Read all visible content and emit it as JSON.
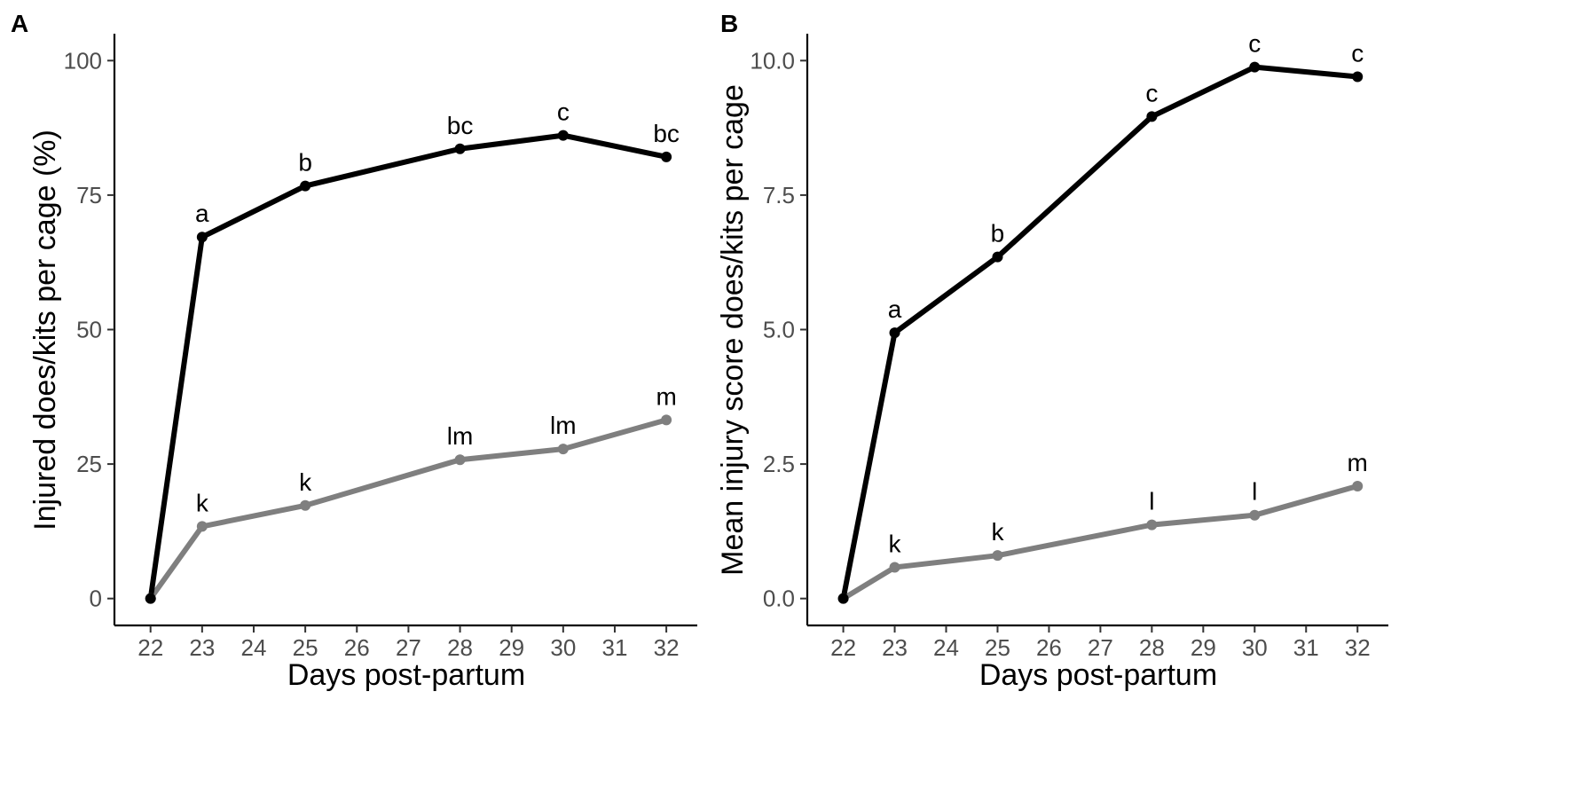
{
  "chart_data": [
    {
      "type": "line",
      "panel_label": "A",
      "xlabel": "Days post-partum",
      "ylabel": "Injured does/kits per cage (%)",
      "xlim": [
        21.3,
        32.6
      ],
      "ylim": [
        -5,
        105
      ],
      "x_ticks": [
        22,
        23,
        24,
        25,
        26,
        27,
        28,
        29,
        30,
        31,
        32
      ],
      "y_ticks": [
        0,
        25,
        50,
        75,
        100
      ],
      "y_tick_labels": [
        "0",
        "25",
        "50",
        "75",
        "100"
      ],
      "series": [
        {
          "name": "black",
          "color": "#000000",
          "x": [
            22,
            23,
            25,
            28,
            30,
            32
          ],
          "values": [
            0,
            67.2,
            76.7,
            83.6,
            86.1,
            82.1
          ],
          "letters": [
            "",
            "a",
            "b",
            "bc",
            "c",
            "bc"
          ]
        },
        {
          "name": "grey",
          "color": "#7f7f7f",
          "x": [
            22,
            23,
            25,
            28,
            30,
            32
          ],
          "values": [
            0,
            13.4,
            17.3,
            25.8,
            27.8,
            33.2
          ],
          "letters": [
            "",
            "k",
            "k",
            "lm",
            "lm",
            "m"
          ]
        }
      ]
    },
    {
      "type": "line",
      "panel_label": "B",
      "xlabel": "Days post-partum",
      "ylabel": "Mean injury score does/kits per cage",
      "xlim": [
        21.3,
        32.6
      ],
      "ylim": [
        -0.5,
        10.5
      ],
      "x_ticks": [
        22,
        23,
        24,
        25,
        26,
        27,
        28,
        29,
        30,
        31,
        32
      ],
      "y_ticks": [
        0,
        2.5,
        5,
        7.5,
        10
      ],
      "y_tick_labels": [
        "0.0",
        "2.5",
        "5.0",
        "7.5",
        "10.0"
      ],
      "series": [
        {
          "name": "black",
          "color": "#000000",
          "x": [
            22,
            23,
            25,
            28,
            30,
            32
          ],
          "values": [
            0,
            4.94,
            6.35,
            8.96,
            9.88,
            9.7
          ],
          "letters": [
            "",
            "a",
            "b",
            "c",
            "c",
            "c"
          ]
        },
        {
          "name": "grey",
          "color": "#7f7f7f",
          "x": [
            22,
            23,
            25,
            28,
            30,
            32
          ],
          "values": [
            0,
            0.58,
            0.8,
            1.37,
            1.55,
            2.09
          ],
          "letters": [
            "",
            "k",
            "k",
            "l",
            "l",
            "m"
          ]
        }
      ]
    }
  ]
}
